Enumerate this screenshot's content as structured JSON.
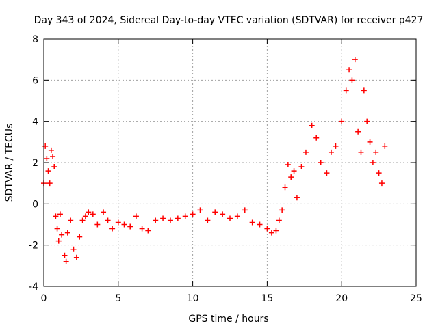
{
  "chart_data": {
    "type": "scatter",
    "title": "Day 343 of 2024, Sidereal Day-to-day VTEC variation (SDTVAR) for receiver p427",
    "xlabel": "GPS time / hours",
    "ylabel": "SDTVAR / TECUs",
    "xlim": [
      0,
      25
    ],
    "ylim": [
      -4,
      8
    ],
    "xticks": [
      0,
      5,
      10,
      15,
      20,
      25
    ],
    "yticks": [
      -4,
      -2,
      0,
      2,
      4,
      6,
      8
    ],
    "grid": true,
    "marker": "+",
    "series": [
      {
        "name": "SDTVAR p427",
        "color": "#ff0000",
        "x": [
          0.0,
          0.1,
          0.2,
          0.3,
          0.4,
          0.5,
          0.6,
          0.7,
          0.8,
          0.9,
          1.0,
          1.1,
          1.2,
          1.4,
          1.5,
          1.6,
          1.8,
          2.0,
          2.2,
          2.4,
          2.6,
          2.8,
          3.0,
          3.3,
          3.6,
          4.0,
          4.3,
          4.6,
          5.0,
          5.4,
          5.8,
          6.2,
          6.6,
          7.0,
          7.5,
          8.0,
          8.5,
          9.0,
          9.5,
          10.0,
          10.5,
          11.0,
          11.5,
          12.0,
          12.5,
          13.0,
          13.5,
          14.0,
          14.5,
          15.0,
          15.3,
          15.6,
          15.8,
          16.0,
          16.2,
          16.4,
          16.6,
          16.8,
          17.0,
          17.3,
          17.6,
          18.0,
          18.3,
          18.6,
          19.0,
          19.3,
          19.6,
          20.0,
          20.3,
          20.5,
          20.7,
          20.9,
          21.1,
          21.3,
          21.5,
          21.7,
          21.9,
          22.1,
          22.3,
          22.5,
          22.7,
          22.9
        ],
        "y": [
          1.0,
          2.8,
          2.2,
          1.6,
          1.0,
          2.6,
          2.3,
          1.8,
          -0.6,
          -1.2,
          -1.8,
          -0.5,
          -1.5,
          -2.5,
          -2.8,
          -1.4,
          -0.8,
          -2.2,
          -2.6,
          -1.6,
          -0.8,
          -0.6,
          -0.4,
          -0.5,
          -1.0,
          -0.4,
          -0.8,
          -1.2,
          -0.9,
          -1.0,
          -1.1,
          -0.6,
          -1.2,
          -1.3,
          -0.8,
          -0.7,
          -0.8,
          -0.7,
          -0.6,
          -0.5,
          -0.3,
          -0.8,
          -0.4,
          -0.5,
          -0.7,
          -0.6,
          -0.3,
          -0.9,
          -1.0,
          -1.2,
          -1.4,
          -1.3,
          -0.8,
          -0.3,
          0.8,
          1.9,
          1.3,
          1.6,
          0.3,
          1.8,
          2.5,
          3.8,
          3.2,
          2.0,
          1.5,
          2.5,
          2.8,
          4.0,
          5.5,
          6.5,
          6.0,
          7.0,
          3.5,
          2.5,
          5.5,
          4.0,
          3.0,
          2.0,
          2.5,
          1.5,
          1.0,
          2.8
        ]
      }
    ]
  }
}
